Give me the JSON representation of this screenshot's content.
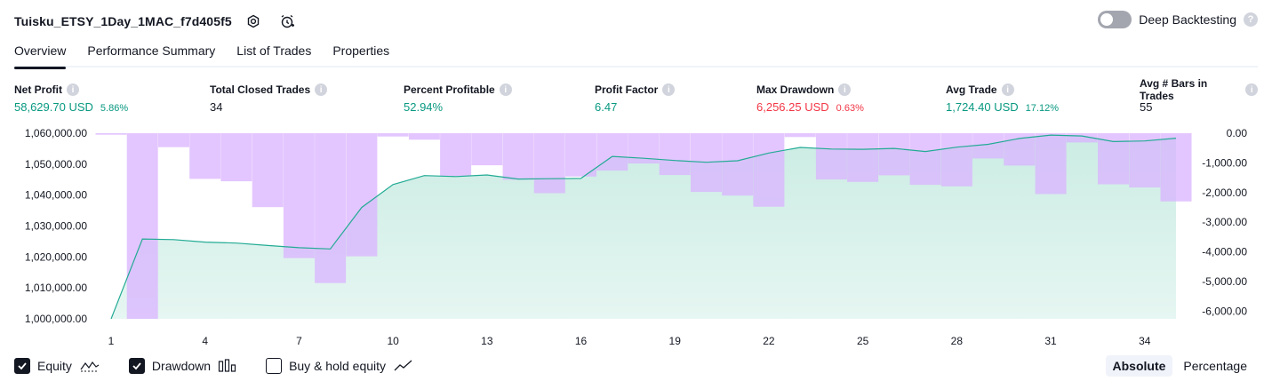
{
  "header": {
    "title": "Tuisku_ETSY_1Day_1MAC_f7d405f5",
    "deep_backtesting_label": "Deep Backtesting",
    "help_glyph": "?"
  },
  "tabs": [
    {
      "label": "Overview",
      "active": true
    },
    {
      "label": "Performance Summary",
      "active": false
    },
    {
      "label": "List of Trades",
      "active": false
    },
    {
      "label": "Properties",
      "active": false
    }
  ],
  "metrics": [
    {
      "label": "Net Profit",
      "value": "58,629.70 USD",
      "pct": "5.86%",
      "color": "#089981"
    },
    {
      "label": "Total Closed Trades",
      "value": "34",
      "pct": "",
      "color": "#131722"
    },
    {
      "label": "Percent Profitable",
      "value": "52.94%",
      "pct": "",
      "color": "#089981"
    },
    {
      "label": "Profit Factor",
      "value": "6.47",
      "pct": "",
      "color": "#089981"
    },
    {
      "label": "Max Drawdown",
      "value": "6,256.25 USD",
      "pct": "0.63%",
      "color": "#f23645"
    },
    {
      "label": "Avg Trade",
      "value": "1,724.40 USD",
      "pct": "17.12%",
      "color": "#089981"
    },
    {
      "label": "Avg # Bars in Trades",
      "value": "55",
      "pct": "",
      "color": "#131722"
    }
  ],
  "info_glyph": "i",
  "legend": {
    "equity_label": "Equity",
    "drawdown_label": "Drawdown",
    "buyhold_label": "Buy & hold equity"
  },
  "scale": {
    "absolute_label": "Absolute",
    "percentage_label": "Percentage"
  },
  "colors": {
    "equity_line": "#22ab94",
    "equity_fill": "#c8ebe2",
    "drawdown_bar": "#d9b3ff",
    "text_green": "#089981",
    "text_red": "#f23645"
  },
  "chart_data": {
    "type": "area",
    "x_ticks": [
      1,
      4,
      7,
      10,
      13,
      16,
      19,
      22,
      25,
      28,
      31,
      34
    ],
    "xlim": [
      1,
      35.5
    ],
    "equity": {
      "name": "Equity",
      "ylim": [
        1000000,
        1060000
      ],
      "y_ticks": [
        "1,060,000.00",
        "1,050,000.00",
        "1,040,000.00",
        "1,030,000.00",
        "1,020,000.00",
        "1,010,000.00",
        "1,000,000.00"
      ],
      "points": [
        [
          1,
          1000000
        ],
        [
          2,
          1025800
        ],
        [
          3,
          1025600
        ],
        [
          4,
          1024800
        ],
        [
          5,
          1024500
        ],
        [
          6,
          1023700
        ],
        [
          7,
          1023000
        ],
        [
          8,
          1022600
        ],
        [
          9,
          1036000
        ],
        [
          10,
          1043400
        ],
        [
          11,
          1046300
        ],
        [
          12,
          1046000
        ],
        [
          13,
          1046500
        ],
        [
          14,
          1045200
        ],
        [
          15,
          1045300
        ],
        [
          16,
          1045400
        ],
        [
          17,
          1052500
        ],
        [
          18,
          1051900
        ],
        [
          19,
          1051200
        ],
        [
          20,
          1050600
        ],
        [
          21,
          1051100
        ],
        [
          22,
          1053600
        ],
        [
          23,
          1055400
        ],
        [
          24,
          1054900
        ],
        [
          25,
          1054800
        ],
        [
          26,
          1055100
        ],
        [
          27,
          1054100
        ],
        [
          28,
          1055500
        ],
        [
          29,
          1056400
        ],
        [
          30,
          1058300
        ],
        [
          31,
          1059400
        ],
        [
          32,
          1059100
        ],
        [
          33,
          1057300
        ],
        [
          34,
          1057500
        ],
        [
          35,
          1058400
        ]
      ]
    },
    "drawdown": {
      "name": "Drawdown",
      "ylim": [
        -6256.25,
        0
      ],
      "y_ticks": [
        "0.00",
        "-1,000.00",
        "-2,000.00",
        "-3,000.00",
        "-4,000.00",
        "-5,000.00",
        "-6,000.00"
      ],
      "y_tick_values": [
        0,
        -1000,
        -2000,
        -3000,
        -4000,
        -5000,
        -6000
      ],
      "values": [
        -50,
        -6256.25,
        -470,
        -1540,
        -1620,
        -2490,
        -4210,
        -5050,
        -4150,
        -110,
        -220,
        -1450,
        -1080,
        -1570,
        -2020,
        -1460,
        -1260,
        -1020,
        -1410,
        -1980,
        -2100,
        -2480,
        -130,
        -1560,
        -1640,
        -1420,
        -1740,
        -1790,
        -850,
        -1090,
        -2050,
        -310,
        -1720,
        -1830,
        -2300
      ]
    }
  }
}
